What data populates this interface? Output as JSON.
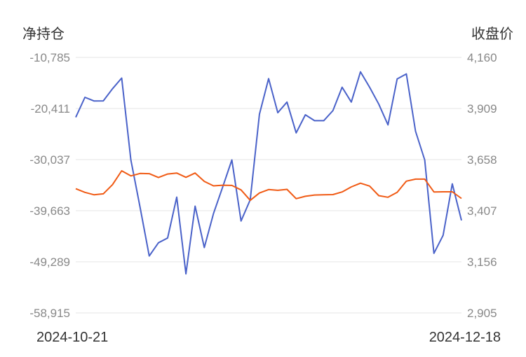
{
  "chart_data": {
    "type": "line",
    "left_axis_title": "净持仓",
    "right_axis_title": "收盘价",
    "left_ticks": [
      "-10,785",
      "-20,411",
      "-30,037",
      "-39,663",
      "-49,289",
      "-58,915"
    ],
    "right_ticks": [
      "4,160",
      "3,909",
      "3,658",
      "3,407",
      "3,156",
      "2,905"
    ],
    "left_range": [
      -58915,
      -10785
    ],
    "right_range": [
      2905,
      4160
    ],
    "x_labels": [
      "2024-10-21",
      "2024-12-18"
    ],
    "grid": true,
    "series": [
      {
        "axis": "left",
        "color": "#4a62c9",
        "values": [
          -22070,
          -18300,
          -19000,
          -18970,
          -16690,
          -14670,
          -30100,
          -39000,
          -48200,
          -45700,
          -44800,
          -37100,
          -51560,
          -38800,
          -46600,
          -40200,
          -35200,
          -30100,
          -41600,
          -37600,
          -21500,
          -14780,
          -21200,
          -19200,
          -25000,
          -21600,
          -22700,
          -22700,
          -20800,
          -16400,
          -19200,
          -13500,
          -16400,
          -19600,
          -23500,
          -14830,
          -13900,
          -24700,
          -30100,
          -47700,
          -44300,
          -34600,
          -41500
        ]
      },
      {
        "axis": "right",
        "color": "#f05a14",
        "values": [
          3515,
          3497,
          3485,
          3490,
          3535,
          3603,
          3578,
          3590,
          3589,
          3570,
          3587,
          3592,
          3571,
          3592,
          3551,
          3529,
          3532,
          3531,
          3509,
          3458,
          3494,
          3511,
          3507,
          3512,
          3466,
          3478,
          3484,
          3485,
          3486,
          3499,
          3524,
          3542,
          3528,
          3481,
          3473,
          3497,
          3552,
          3562,
          3562,
          3499,
          3500,
          3500,
          3467
        ]
      }
    ]
  }
}
